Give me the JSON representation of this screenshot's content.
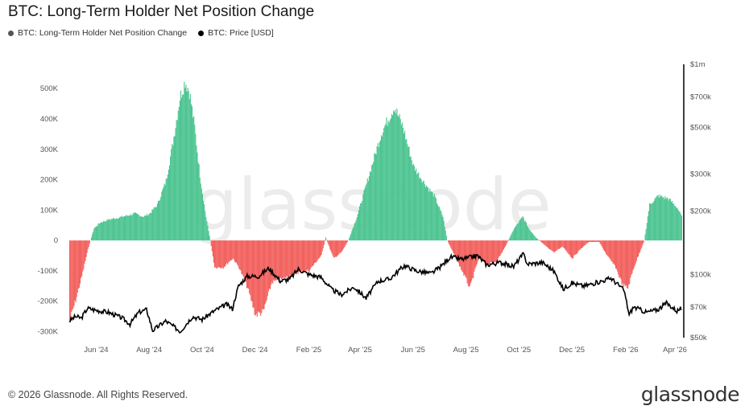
{
  "title": "BTC: Long-Term Holder Net Position Change",
  "legend": [
    {
      "label": "BTC: Long-Term Holder Net Position Change",
      "color": "#555555"
    },
    {
      "label": "BTC: Price [USD]",
      "color": "#000000"
    }
  ],
  "footer": "© 2026 Glassnode. All Rights Reserved.",
  "watermark": "glassnode",
  "logo": "glassnode",
  "colors": {
    "positive": "#4fc592",
    "negative": "#f2625f",
    "price": "#000000",
    "axis": "#000000"
  },
  "chart_data": {
    "type": "bar",
    "title": "BTC: Long-Term Holder Net Position Change",
    "x_range": [
      "2024-05-01",
      "2026-04-08"
    ],
    "x_ticks": [
      "Jun '24",
      "Aug '24",
      "Oct '24",
      "Dec '24",
      "Feb '25",
      "Apr '25",
      "Jun '25",
      "Aug '25",
      "Oct '25",
      "Dec '25",
      "Feb '26",
      "Apr '26"
    ],
    "y_left": {
      "range": [
        -320000,
        580000
      ],
      "ticks": [
        500000,
        400000,
        300000,
        200000,
        100000,
        0,
        -100000,
        -200000,
        -300000
      ],
      "tick_labels": [
        "500K",
        "400K",
        "300K",
        "200K",
        "100K",
        "0",
        "-100K",
        "-200K",
        "-300K"
      ]
    },
    "y_right": {
      "scale": "log",
      "range": [
        50000,
        1000000
      ],
      "ticks": [
        1000000,
        700000,
        500000,
        300000,
        200000,
        100000,
        70000,
        50000
      ],
      "tick_labels": [
        "$1m",
        "$700k",
        "$500k",
        "$300k",
        "$200k",
        "$100k",
        "$70k",
        "$50k"
      ]
    },
    "series": [
      {
        "name": "BTC: Long-Term Holder Net Position Change",
        "type": "bar",
        "points": [
          [
            "2024-05-01",
            -270000
          ],
          [
            "2024-05-08",
            -200000
          ],
          [
            "2024-05-15",
            -120000
          ],
          [
            "2024-05-22",
            -30000
          ],
          [
            "2024-05-29",
            40000
          ],
          [
            "2024-06-05",
            60000
          ],
          [
            "2024-06-15",
            70000
          ],
          [
            "2024-07-01",
            80000
          ],
          [
            "2024-07-15",
            90000
          ],
          [
            "2024-07-25",
            80000
          ],
          [
            "2024-08-01",
            90000
          ],
          [
            "2024-08-10",
            120000
          ],
          [
            "2024-08-20",
            200000
          ],
          [
            "2024-08-28",
            330000
          ],
          [
            "2024-09-05",
            480000
          ],
          [
            "2024-09-11",
            535000
          ],
          [
            "2024-09-16",
            500000
          ],
          [
            "2024-09-22",
            380000
          ],
          [
            "2024-09-28",
            220000
          ],
          [
            "2024-10-05",
            80000
          ],
          [
            "2024-10-10",
            0
          ],
          [
            "2024-10-15",
            -90000
          ],
          [
            "2024-10-25",
            -90000
          ],
          [
            "2024-11-05",
            -60000
          ],
          [
            "2024-11-12",
            -90000
          ],
          [
            "2024-11-22",
            -160000
          ],
          [
            "2024-12-01",
            -250000
          ],
          [
            "2024-12-10",
            -240000
          ],
          [
            "2024-12-20",
            -140000
          ],
          [
            "2025-01-01",
            -130000
          ],
          [
            "2025-01-15",
            -110000
          ],
          [
            "2025-02-01",
            -100000
          ],
          [
            "2025-02-15",
            -50000
          ],
          [
            "2025-02-20",
            10000
          ],
          [
            "2025-03-01",
            -60000
          ],
          [
            "2025-03-10",
            -40000
          ],
          [
            "2025-03-18",
            0
          ],
          [
            "2025-03-28",
            80000
          ],
          [
            "2025-04-10",
            210000
          ],
          [
            "2025-04-25",
            360000
          ],
          [
            "2025-05-10",
            450000
          ],
          [
            "2025-05-20",
            380000
          ],
          [
            "2025-06-01",
            250000
          ],
          [
            "2025-06-12",
            200000
          ],
          [
            "2025-06-25",
            150000
          ],
          [
            "2025-07-05",
            80000
          ],
          [
            "2025-07-10",
            0
          ],
          [
            "2025-07-20",
            -60000
          ],
          [
            "2025-07-30",
            -120000
          ],
          [
            "2025-08-05",
            -160000
          ],
          [
            "2025-08-15",
            -60000
          ],
          [
            "2025-08-25",
            -80000
          ],
          [
            "2025-09-05",
            -70000
          ],
          [
            "2025-09-15",
            -20000
          ],
          [
            "2025-09-25",
            40000
          ],
          [
            "2025-10-05",
            80000
          ],
          [
            "2025-10-12",
            40000
          ],
          [
            "2025-10-20",
            10000
          ],
          [
            "2025-11-01",
            -20000
          ],
          [
            "2025-11-10",
            -40000
          ],
          [
            "2025-11-20",
            -20000
          ],
          [
            "2025-12-01",
            -60000
          ],
          [
            "2025-12-10",
            -30000
          ],
          [
            "2025-12-20",
            -5000
          ],
          [
            "2026-01-01",
            -5000
          ],
          [
            "2026-01-10",
            -50000
          ],
          [
            "2026-01-20",
            -90000
          ],
          [
            "2026-01-28",
            -150000
          ],
          [
            "2026-02-03",
            -160000
          ],
          [
            "2026-02-10",
            -90000
          ],
          [
            "2026-02-18",
            -30000
          ],
          [
            "2026-02-22",
            0
          ],
          [
            "2026-02-28",
            120000
          ],
          [
            "2026-03-10",
            150000
          ],
          [
            "2026-03-22",
            140000
          ],
          [
            "2026-04-01",
            110000
          ],
          [
            "2026-04-06",
            80000
          ]
        ]
      },
      {
        "name": "BTC: Price [USD]",
        "type": "line",
        "axis": "right",
        "points": [
          [
            "2024-05-01",
            60000
          ],
          [
            "2024-05-08",
            63000
          ],
          [
            "2024-05-15",
            62000
          ],
          [
            "2024-05-22",
            69000
          ],
          [
            "2024-06-01",
            67500
          ],
          [
            "2024-06-15",
            66000
          ],
          [
            "2024-07-01",
            62000
          ],
          [
            "2024-07-10",
            58000
          ],
          [
            "2024-07-20",
            66000
          ],
          [
            "2024-07-29",
            68000
          ],
          [
            "2024-08-05",
            54000
          ],
          [
            "2024-08-20",
            60000
          ],
          [
            "2024-09-06",
            53500
          ],
          [
            "2024-09-20",
            63000
          ],
          [
            "2024-10-01",
            61000
          ],
          [
            "2024-10-15",
            67000
          ],
          [
            "2024-10-29",
            72000
          ],
          [
            "2024-11-05",
            68500
          ],
          [
            "2024-11-12",
            88000
          ],
          [
            "2024-11-22",
            98000
          ],
          [
            "2024-12-05",
            98000
          ],
          [
            "2024-12-17",
            107000
          ],
          [
            "2024-12-30",
            93000
          ],
          [
            "2025-01-10",
            95000
          ],
          [
            "2025-01-20",
            106000
          ],
          [
            "2025-02-01",
            100000
          ],
          [
            "2025-02-15",
            97000
          ],
          [
            "2025-02-27",
            85000
          ],
          [
            "2025-03-10",
            80000
          ],
          [
            "2025-03-25",
            87000
          ],
          [
            "2025-04-08",
            77000
          ],
          [
            "2025-04-22",
            93000
          ],
          [
            "2025-05-05",
            95000
          ],
          [
            "2025-05-22",
            110000
          ],
          [
            "2025-06-05",
            104000
          ],
          [
            "2025-06-22",
            101000
          ],
          [
            "2025-07-03",
            109000
          ],
          [
            "2025-07-14",
            121000
          ],
          [
            "2025-07-28",
            118000
          ],
          [
            "2025-08-14",
            123000
          ],
          [
            "2025-08-25",
            111000
          ],
          [
            "2025-09-10",
            114000
          ],
          [
            "2025-09-25",
            109000
          ],
          [
            "2025-10-06",
            125000
          ],
          [
            "2025-10-11",
            112000
          ],
          [
            "2025-10-28",
            114000
          ],
          [
            "2025-11-10",
            104000
          ],
          [
            "2025-11-21",
            85000
          ],
          [
            "2025-12-01",
            91000
          ],
          [
            "2025-12-15",
            88000
          ],
          [
            "2026-01-05",
            93000
          ],
          [
            "2026-01-15",
            96000
          ],
          [
            "2026-01-30",
            84000
          ],
          [
            "2026-02-05",
            64000
          ],
          [
            "2026-02-10",
            70000
          ],
          [
            "2026-02-25",
            66000
          ],
          [
            "2026-03-10",
            68000
          ],
          [
            "2026-03-20",
            73000
          ],
          [
            "2026-04-01",
            67000
          ],
          [
            "2026-04-06",
            69000
          ]
        ]
      }
    ]
  }
}
